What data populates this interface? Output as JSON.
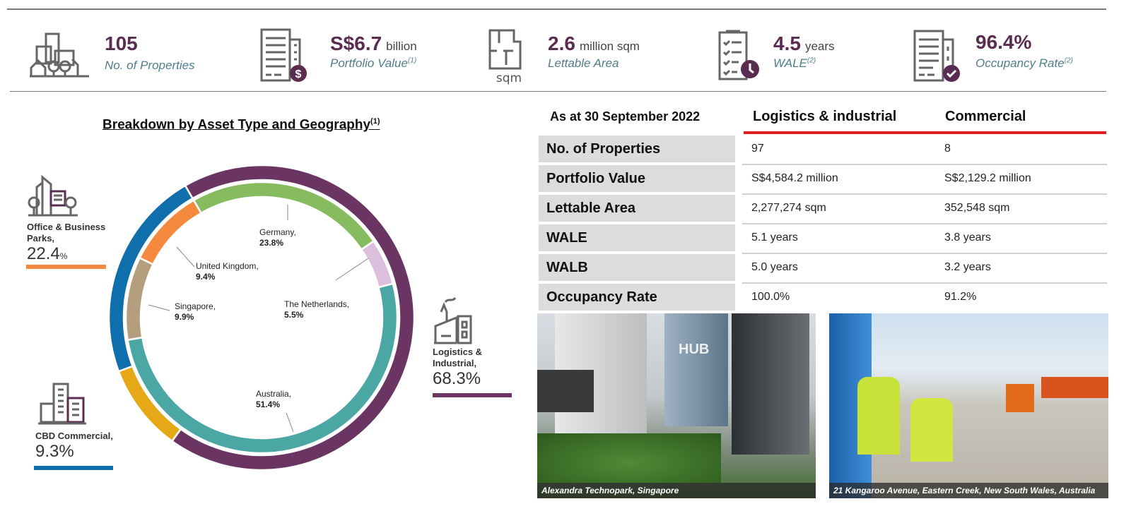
{
  "kpis": [
    {
      "value": "105",
      "unit": "",
      "label": "No. of Properties",
      "note": "",
      "icon": "buildings-trees-icon"
    },
    {
      "value": "S$6.7",
      "unit": "billion",
      "label": "Portfolio Value",
      "note": "(1)",
      "icon": "building-dollar-icon"
    },
    {
      "value": "2.6",
      "unit": "million sqm",
      "label": "Lettable Area",
      "note": "",
      "icon": "floorplan-sqm-icon",
      "icon_text": "sqm"
    },
    {
      "value": "4.5",
      "unit": "years",
      "label": "WALE",
      "note": "(2)",
      "icon": "clipboard-clock-icon"
    },
    {
      "value": "96.4%",
      "unit": "",
      "label": "Occupancy Rate",
      "note": "(2)",
      "icon": "building-check-icon"
    }
  ],
  "chart_data": {
    "type": "pie",
    "subtype": "nested-donut",
    "title": "Breakdown by Asset Type and Geography",
    "title_note": "(1)",
    "outer": {
      "categories": [
        "Logistics & Industrial,",
        "CBD Commercial,",
        "Office & Business Parks,"
      ],
      "values": [
        68.3,
        9.3,
        22.4
      ],
      "labels": [
        "68.3%",
        "9.3%",
        "22.4"
      ],
      "colors": [
        "#6b3563",
        "#e6a817",
        "#0f6fad"
      ]
    },
    "inner": {
      "categories": [
        "Germany,",
        "The Netherlands,",
        "Australia,",
        "Singapore,",
        "United Kingdom,"
      ],
      "values": [
        23.8,
        5.5,
        51.4,
        9.9,
        9.4
      ],
      "labels": [
        "23.8%",
        "5.5%",
        "51.4%",
        "9.9%",
        "9.4%"
      ],
      "colors": [
        "#86bb5f",
        "#dcbfdc",
        "#4aa7a4",
        "#b59e7e",
        "#f5893d"
      ]
    },
    "pct_suffix": "%"
  },
  "asset_legend_colors": {
    "office": "#f5893d",
    "cbd": "#0f6fad",
    "logistics": "#6b3563"
  },
  "table": {
    "date_header": "As at 30 September 2022",
    "columns": [
      "Logistics & industrial",
      "Commercial"
    ],
    "accent": "#e02020",
    "rows": [
      {
        "label": "No. of Properties",
        "values": [
          "97",
          "8"
        ]
      },
      {
        "label": "Portfolio Value",
        "values": [
          "S$4,584.2 million",
          "S$2,129.2 million"
        ]
      },
      {
        "label": "Lettable Area",
        "values": [
          "2,277,274 sqm",
          "352,548 sqm"
        ]
      },
      {
        "label": "WALE",
        "values": [
          "5.1 years",
          "3.8 years"
        ]
      },
      {
        "label": "WALB",
        "values": [
          "5.0 years",
          "3.2 years"
        ]
      },
      {
        "label": "Occupancy Rate",
        "values": [
          "100.0%",
          "91.2%"
        ]
      }
    ]
  },
  "photos": [
    {
      "caption": "Alexandra Technopark, Singapore",
      "sign": "HUB"
    },
    {
      "caption": "21 Kangaroo Avenue, Eastern Creek, New South Wales, Australia"
    }
  ]
}
